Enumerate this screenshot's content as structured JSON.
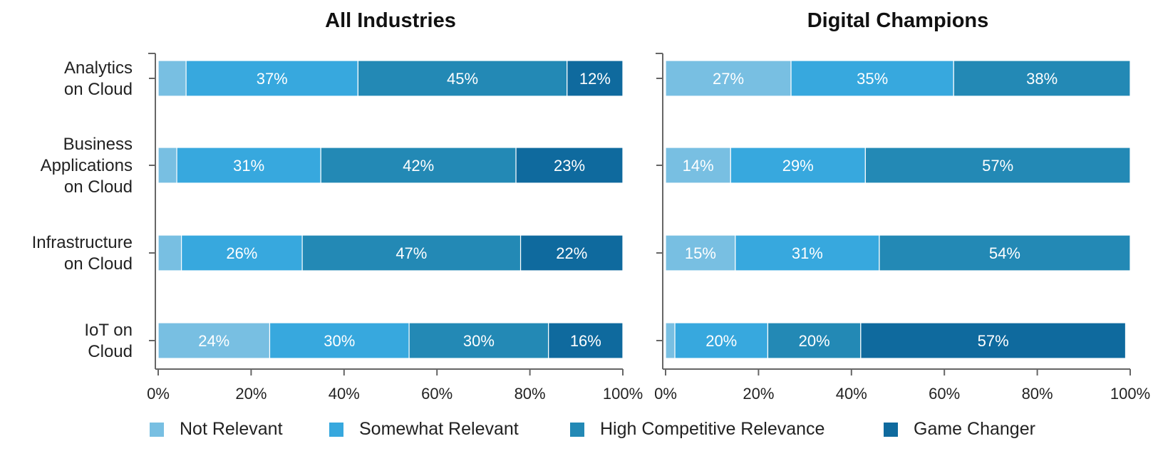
{
  "chart_data": [
    {
      "type": "bar",
      "orientation": "horizontal",
      "stacked": true,
      "title": "All Industries",
      "categories": [
        "Analytics on Cloud",
        "Business Applications on Cloud",
        "Infrastructure on Cloud",
        "IoT on Cloud"
      ],
      "category_lines": [
        [
          "Analytics",
          "on Cloud"
        ],
        [
          "Business",
          "Applications",
          "on Cloud"
        ],
        [
          "Infrastructure",
          "on Cloud"
        ],
        [
          "IoT on",
          "Cloud"
        ]
      ],
      "series": [
        {
          "name": "Not Relevant",
          "values": [
            6,
            4,
            5,
            24
          ],
          "labels": [
            "",
            "",
            "",
            "24%"
          ]
        },
        {
          "name": "Somewhat Relevant",
          "values": [
            37,
            31,
            26,
            30
          ],
          "labels": [
            "37%",
            "31%",
            "26%",
            "30%"
          ]
        },
        {
          "name": "High Competitive Relevance",
          "values": [
            45,
            42,
            47,
            30
          ],
          "labels": [
            "45%",
            "42%",
            "47%",
            "30%"
          ]
        },
        {
          "name": "Game Changer",
          "values": [
            12,
            23,
            22,
            16
          ],
          "labels": [
            "12%",
            "23%",
            "22%",
            "16%"
          ]
        }
      ],
      "xlim": [
        0,
        100
      ],
      "xticks": [
        "0%",
        "20%",
        "40%",
        "60%",
        "80%",
        "100%"
      ],
      "grid": false
    },
    {
      "type": "bar",
      "orientation": "horizontal",
      "stacked": true,
      "title": "Digital Champions",
      "categories": [
        "Analytics on Cloud",
        "Business Applications on Cloud",
        "Infrastructure on Cloud",
        "IoT on Cloud"
      ],
      "series": [
        {
          "name": "Not Relevant",
          "values": [
            27,
            14,
            15,
            2
          ],
          "labels": [
            "27%",
            "14%",
            "15%",
            ""
          ]
        },
        {
          "name": "Somewhat Relevant",
          "values": [
            35,
            29,
            31,
            20
          ],
          "labels": [
            "35%",
            "29%",
            "31%",
            "20%"
          ]
        },
        {
          "name": "High Competitive Relevance",
          "values": [
            38,
            57,
            54,
            20
          ],
          "labels": [
            "38%",
            "57%",
            "54%",
            "20%"
          ]
        },
        {
          "name": "Game Changer",
          "values": [
            0,
            0,
            0,
            57
          ],
          "labels": [
            "",
            "",
            "",
            "57%"
          ]
        }
      ],
      "xlim": [
        0,
        100
      ],
      "xticks": [
        "0%",
        "20%",
        "40%",
        "60%",
        "80%",
        "100%"
      ],
      "grid": false
    }
  ],
  "legend": {
    "placement": "bottom",
    "items": [
      {
        "label": "Not Relevant",
        "color": "#78bfe2"
      },
      {
        "label": "Somewhat Relevant",
        "color": "#37a8de"
      },
      {
        "label": "High Competitive Relevance",
        "color": "#2389b5"
      },
      {
        "label": "Game Changer",
        "color": "#0f6a9e"
      }
    ]
  }
}
